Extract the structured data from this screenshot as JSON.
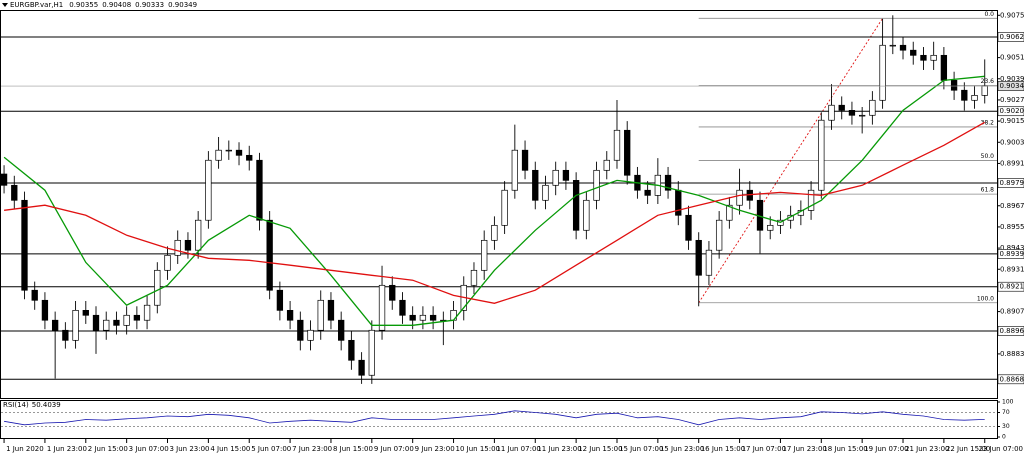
{
  "chart_data": [
    {
      "type": "candlestick",
      "title": "EURGBP.var,H1",
      "ohlc": [
        0.90355,
        0.90408,
        0.90333,
        0.90349
      ],
      "open": [
        0.8985,
        0.89786,
        0.89701,
        0.89191,
        0.89134,
        0.89021,
        0.88964,
        0.88907,
        0.89077,
        0.89049,
        0.88964,
        0.89021,
        0.88992,
        0.89049,
        0.89021,
        0.89106,
        0.89304,
        0.89389,
        0.89474,
        0.89418,
        0.89588,
        0.89928,
        0.89985,
        0.89985,
        0.89956,
        0.89928,
        0.89588,
        0.89191,
        0.89077,
        0.89021,
        0.88907,
        0.88964,
        0.89134,
        0.89021,
        0.88907,
        0.88794,
        0.88709,
        0.88964,
        0.89219,
        0.89134,
        0.89049,
        0.89021,
        0.89049,
        0.89021,
        0.89021,
        0.89077,
        0.89219,
        0.89304,
        0.89474,
        0.89559,
        0.89758,
        0.89985,
        0.89871,
        0.89701,
        0.89786,
        0.89871,
        0.89814,
        0.89531,
        0.89701,
        0.89871,
        0.89928,
        0.90098,
        0.89843,
        0.89758,
        0.89729,
        0.89843,
        0.89758,
        0.89616,
        0.89474,
        0.89276,
        0.89418,
        0.89588,
        0.89673,
        0.89758,
        0.89701,
        0.89531,
        0.89559,
        0.89588,
        0.89616,
        0.89644,
        0.89758,
        0.90155,
        0.9024,
        0.90211,
        0.90183,
        0.90183,
        0.90268,
        0.9058,
        0.9058,
        0.90552,
        0.90523,
        0.90495,
        0.90523,
        0.90381,
        0.90325,
        0.90268,
        0.90296
      ],
      "high": [
        0.899,
        0.8984,
        0.8975,
        0.8924,
        0.8918,
        0.8907,
        0.8901,
        0.8913,
        0.8913,
        0.891,
        0.8907,
        0.8907,
        0.891,
        0.891,
        0.8916,
        0.8935,
        0.8944,
        0.8953,
        0.8952,
        0.8964,
        0.8998,
        0.9006,
        0.9004,
        0.9003,
        0.9001,
        0.8997,
        0.8964,
        0.8924,
        0.8913,
        0.8907,
        0.8902,
        0.8919,
        0.8918,
        0.8907,
        0.8896,
        0.8884,
        0.8902,
        0.8933,
        0.8927,
        0.8918,
        0.891,
        0.891,
        0.891,
        0.8907,
        0.8913,
        0.8927,
        0.8935,
        0.8953,
        0.8961,
        0.8981,
        0.9013,
        0.9004,
        0.8992,
        0.8984,
        0.8992,
        0.8992,
        0.8986,
        0.8975,
        0.8992,
        0.8998,
        0.9027,
        0.9015,
        0.8989,
        0.8981,
        0.8994,
        0.8989,
        0.8981,
        0.8967,
        0.8952,
        0.8947,
        0.8964,
        0.8972,
        0.8988,
        0.8981,
        0.8975,
        0.8961,
        0.8964,
        0.8967,
        0.897,
        0.8981,
        0.902,
        0.9036,
        0.9029,
        0.9026,
        0.9023,
        0.9032,
        0.9073,
        0.9075,
        0.9063,
        0.906,
        0.9057,
        0.906,
        0.9057,
        0.9043,
        0.9037,
        0.9035,
        0.905
      ],
      "low": [
        0.8974,
        0.8965,
        0.8914,
        0.8908,
        0.8897,
        0.8869,
        0.8886,
        0.8886,
        0.89,
        0.8883,
        0.8891,
        0.8894,
        0.8894,
        0.8897,
        0.8897,
        0.8906,
        0.8925,
        0.8934,
        0.8937,
        0.8937,
        0.8954,
        0.8988,
        0.8993,
        0.899,
        0.8987,
        0.8953,
        0.8914,
        0.8902,
        0.8897,
        0.8885,
        0.8885,
        0.8891,
        0.8897,
        0.8885,
        0.8874,
        0.8866,
        0.8866,
        0.8891,
        0.8908,
        0.89,
        0.8897,
        0.8897,
        0.8897,
        0.8888,
        0.8897,
        0.8902,
        0.8917,
        0.8925,
        0.8942,
        0.8951,
        0.8971,
        0.8982,
        0.8965,
        0.8965,
        0.8973,
        0.8976,
        0.8948,
        0.8948,
        0.8965,
        0.8982,
        0.8988,
        0.8979,
        0.8971,
        0.8968,
        0.8968,
        0.8971,
        0.8956,
        0.8942,
        0.891,
        0.8922,
        0.8937,
        0.8954,
        0.8962,
        0.8965,
        0.894,
        0.8948,
        0.8951,
        0.8954,
        0.8956,
        0.8959,
        0.8971,
        0.901,
        0.9016,
        0.9013,
        0.9008,
        0.9013,
        0.9022,
        0.9053,
        0.905,
        0.9047,
        0.9044,
        0.9044,
        0.9033,
        0.9027,
        0.9021,
        0.9022,
        0.9025
      ],
      "close": [
        0.89786,
        0.89701,
        0.89191,
        0.89134,
        0.89021,
        0.88964,
        0.88907,
        0.89077,
        0.89049,
        0.88964,
        0.89021,
        0.88992,
        0.89049,
        0.89021,
        0.89106,
        0.89304,
        0.89389,
        0.89474,
        0.89418,
        0.89588,
        0.89928,
        0.89985,
        0.89985,
        0.89956,
        0.89928,
        0.89588,
        0.89191,
        0.89077,
        0.89021,
        0.88907,
        0.88964,
        0.89134,
        0.89021,
        0.88907,
        0.88794,
        0.88709,
        0.88964,
        0.89219,
        0.89134,
        0.89049,
        0.89021,
        0.89049,
        0.89021,
        0.89021,
        0.89077,
        0.89219,
        0.89304,
        0.89474,
        0.89559,
        0.89758,
        0.89985,
        0.89871,
        0.89701,
        0.89786,
        0.89871,
        0.89814,
        0.89531,
        0.89701,
        0.89871,
        0.89928,
        0.90098,
        0.89843,
        0.89758,
        0.89729,
        0.89843,
        0.89758,
        0.89616,
        0.89474,
        0.89276,
        0.89418,
        0.89588,
        0.89673,
        0.89758,
        0.89701,
        0.89531,
        0.89559,
        0.89588,
        0.89616,
        0.89644,
        0.89758,
        0.90155,
        0.9024,
        0.90211,
        0.90183,
        0.90183,
        0.90268,
        0.9058,
        0.9058,
        0.90552,
        0.90523,
        0.90495,
        0.90523,
        0.90381,
        0.90325,
        0.90268,
        0.90296,
        0.90349
      ],
      "lines": [
        {
          "color": "#079a07",
          "x": [
            0,
            4,
            8,
            12,
            16,
            20,
            24,
            28,
            32,
            36,
            40,
            44,
            48,
            52,
            56,
            60,
            64,
            68,
            72,
            76,
            80,
            84,
            88,
            92,
            96
          ],
          "values": [
            0.89945,
            0.89758,
            0.89349,
            0.89106,
            0.89219,
            0.89474,
            0.89616,
            0.89542,
            0.89276,
            0.88992,
            0.88992,
            0.89021,
            0.89304,
            0.89531,
            0.89729,
            0.89814,
            0.89786,
            0.89729,
            0.89644,
            0.89576,
            0.89701,
            0.89928,
            0.90211,
            0.90381,
            0.90404
          ]
        },
        {
          "color": "#e01010",
          "x": [
            0,
            4,
            8,
            12,
            16,
            20,
            24,
            28,
            32,
            36,
            40,
            44,
            48,
            52,
            56,
            60,
            64,
            68,
            72,
            76,
            80,
            84,
            88,
            92,
            96
          ],
          "values": [
            0.89644,
            0.89673,
            0.89616,
            0.89503,
            0.89429,
            0.89372,
            0.89361,
            0.89333,
            0.89304,
            0.89276,
            0.89248,
            0.89162,
            0.89117,
            0.89191,
            0.89333,
            0.89474,
            0.89616,
            0.89673,
            0.89729,
            0.89746,
            0.89729,
            0.89786,
            0.899,
            0.90013,
            0.90143
          ]
        }
      ],
      "levels": [
        {
          "value": 0.90627,
          "label": "0.90627"
        },
        {
          "value": 0.90206,
          "label": "0.90206"
        },
        {
          "value": 0.89799,
          "label": "0.89799"
        },
        {
          "value": 0.89397,
          "label": "0.89397"
        },
        {
          "value": 0.89211,
          "label": "0.89211"
        },
        {
          "value": 0.8896,
          "label": "0.88960"
        },
        {
          "value": 0.88686,
          "label": "0.88686"
        }
      ],
      "current": {
        "value": 0.90349,
        "label": "0.90349"
      },
      "fib": {
        "start": 68,
        "levels": [
          {
            "label": "0.0",
            "value": 0.90733
          },
          {
            "label": "23.6",
            "value": 0.90352
          },
          {
            "label": "38.2",
            "value": 0.90117
          },
          {
            "label": "50.0",
            "value": 0.89927
          },
          {
            "label": "61.8",
            "value": 0.89736
          },
          {
            "label": "100.0",
            "value": 0.8912
          }
        ]
      },
      "trendline": {
        "color": "#e01010",
        "x": [
          68,
          86
        ],
        "values": [
          0.8912,
          0.90733
        ]
      },
      "xlim": [
        -0.3,
        97.2
      ],
      "ylim": [
        0.8858,
        0.9078
      ],
      "yticks": [
        {
          "value": 0.9075,
          "label": "0.90750"
        },
        {
          "value": 0.9051,
          "label": "0.90510"
        },
        {
          "value": 0.9039,
          "label": "0.90390"
        },
        {
          "value": 0.9027,
          "label": "0.90270"
        },
        {
          "value": 0.9015,
          "label": "0.90150"
        },
        {
          "value": 0.9003,
          "label": "0.90030"
        },
        {
          "value": 0.8991,
          "label": "0.89910"
        },
        {
          "value": 0.8967,
          "label": "0.89670"
        },
        {
          "value": 0.8955,
          "label": "0.89550"
        },
        {
          "value": 0.8943,
          "label": "0.89430"
        },
        {
          "value": 0.8931,
          "label": "0.89310"
        },
        {
          "value": 0.8907,
          "label": "0.89070"
        },
        {
          "value": 0.8883,
          "label": "0.88830"
        }
      ],
      "xticks": [
        {
          "value": 0,
          "label": "1 Jun 2020"
        },
        {
          "value": 4,
          "label": "1 Jun 23:00"
        },
        {
          "value": 8,
          "label": "2 Jun 15:00"
        },
        {
          "value": 12,
          "label": "3 Jun 07:00"
        },
        {
          "value": 16,
          "label": "3 Jun 23:00"
        },
        {
          "value": 20,
          "label": "4 Jun 15:00"
        },
        {
          "value": 24,
          "label": "5 Jun 07:00"
        },
        {
          "value": 28,
          "label": "7 Jun 23:00"
        },
        {
          "value": 32,
          "label": "8 Jun 15:00"
        },
        {
          "value": 36,
          "label": "9 Jun 07:00"
        },
        {
          "value": 40,
          "label": "9 Jun 23:00"
        },
        {
          "value": 44,
          "label": "10 Jun 15:00"
        },
        {
          "value": 48,
          "label": "11 Jun 07:00"
        },
        {
          "value": 52,
          "label": "11 Jun 23:00"
        },
        {
          "value": 56,
          "label": "12 Jun 15:00"
        },
        {
          "value": 60,
          "label": "15 Jun 07:00"
        },
        {
          "value": 64,
          "label": "15 Jun 23:00"
        },
        {
          "value": 68,
          "label": "16 Jun 15:00"
        },
        {
          "value": 72,
          "label": "17 Jun 07:00"
        },
        {
          "value": 76,
          "label": "17 Jun 23:00"
        },
        {
          "value": 80,
          "label": "18 Jun 15:00"
        },
        {
          "value": 84,
          "label": "19 Jun 07:00"
        },
        {
          "value": 88,
          "label": "21 Jun 23:00"
        },
        {
          "value": 92,
          "label": "22 Jun 15:00"
        },
        {
          "value": 96,
          "label": "23 Jun 07:00"
        }
      ]
    },
    {
      "type": "line",
      "title": "RSI(14)",
      "color": "#1a1ab0",
      "x": [
        0,
        2,
        4,
        6,
        8,
        10,
        12,
        14,
        16,
        18,
        20,
        22,
        24,
        26,
        28,
        30,
        32,
        34,
        36,
        38,
        40,
        42,
        44,
        46,
        48,
        50,
        52,
        54,
        56,
        58,
        60,
        62,
        64,
        66,
        68,
        70,
        72,
        74,
        76,
        78,
        80,
        82,
        84,
        86,
        88,
        90,
        92,
        94,
        96
      ],
      "values": [
        45,
        35,
        40,
        42,
        50,
        48,
        52,
        55,
        60,
        58,
        65,
        62,
        55,
        40,
        45,
        48,
        45,
        42,
        55,
        50,
        50,
        50,
        55,
        60,
        65,
        75,
        70,
        65,
        55,
        65,
        68,
        55,
        58,
        50,
        35,
        50,
        55,
        50,
        55,
        58,
        72,
        70,
        66,
        72,
        65,
        60,
        50,
        48,
        50.4039
      ],
      "xlim": [
        -0.3,
        97.2
      ],
      "ylim": [
        0,
        100
      ],
      "yticks": [
        0,
        30,
        70,
        100
      ],
      "dashed": [
        30,
        70
      ]
    }
  ]
}
